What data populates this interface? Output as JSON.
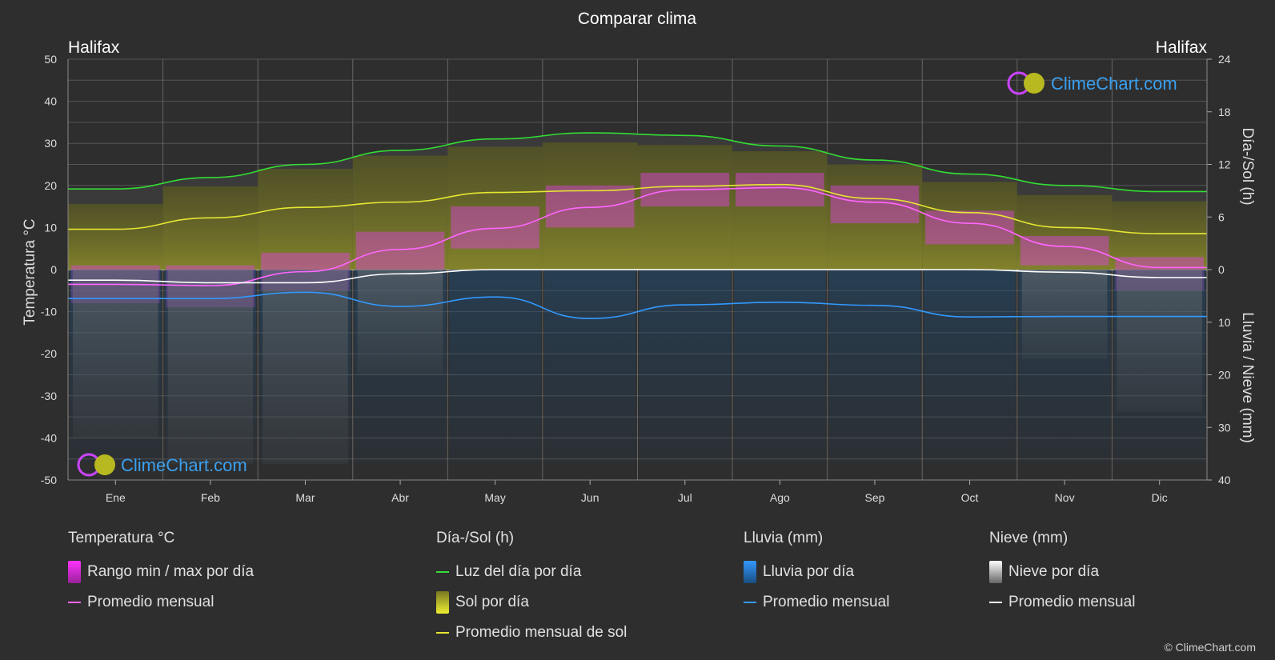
{
  "title": "Comparar clima",
  "location_left": "Halifax",
  "location_right": "Halifax",
  "watermark": "ClimeChart.com",
  "copyright": "© ClimeChart.com",
  "chart_data": {
    "type": "area",
    "categories": [
      "Ene",
      "Feb",
      "Mar",
      "Abr",
      "May",
      "Jun",
      "Jul",
      "Ago",
      "Sep",
      "Oct",
      "Nov",
      "Dic"
    ],
    "y_left": {
      "label": "Temperatura °C",
      "range": [
        -50,
        50
      ],
      "ticks": [
        50,
        40,
        30,
        20,
        10,
        0,
        -10,
        -20,
        -30,
        -40,
        -50
      ]
    },
    "y_right_top": {
      "label": "Día-/Sol (h)",
      "range": [
        0,
        24
      ],
      "ticks": [
        24,
        18,
        12,
        6,
        0
      ]
    },
    "y_right_bottom": {
      "label": "Lluvia / Nieve (mm)",
      "range": [
        0,
        40
      ],
      "ticks": [
        10,
        20,
        30,
        40
      ]
    },
    "grid": true,
    "series": [
      {
        "name": "Luz del día por día",
        "unit": "h",
        "color": "#33dd33",
        "values": [
          9.2,
          10.5,
          12.0,
          13.6,
          14.9,
          15.6,
          15.3,
          14.1,
          12.5,
          10.9,
          9.6,
          8.9
        ]
      },
      {
        "name": "Promedio mensual de sol",
        "unit": "h",
        "color": "#e6e633",
        "values": [
          4.6,
          5.9,
          7.1,
          7.7,
          8.8,
          9.0,
          9.5,
          9.7,
          8.1,
          6.5,
          4.8,
          4.1
        ]
      },
      {
        "name": "Promedio mensual",
        "group": "Temperatura °C",
        "unit": "°C",
        "color": "#ff66ff",
        "values": [
          -3.5,
          -3.8,
          -0.5,
          4.8,
          9.8,
          14.8,
          19.0,
          19.5,
          16.0,
          11.0,
          5.5,
          0.5
        ]
      },
      {
        "name": "Promedio mensual",
        "group": "Lluvia (mm)",
        "unit": "mm",
        "color": "#3399ff",
        "values": [
          5.5,
          5.5,
          4.3,
          7.0,
          5.2,
          9.3,
          6.7,
          6.2,
          6.8,
          9.0,
          8.9,
          8.9
        ]
      },
      {
        "name": "Promedio mensual",
        "group": "Nieve (mm)",
        "unit": "mm",
        "color": "#ffffff",
        "values": [
          2.0,
          2.5,
          2.5,
          0.8,
          0.0,
          0.0,
          0.0,
          0.0,
          0.0,
          0.0,
          0.5,
          1.5
        ]
      }
    ],
    "temp_range_daily": {
      "name": "Rango min / max por día",
      "min": [
        -8,
        -9,
        -5,
        0,
        5,
        10,
        15,
        15,
        11,
        6,
        1,
        -5
      ],
      "max": [
        1,
        1,
        4,
        9,
        15,
        20,
        23,
        23,
        20,
        14,
        8,
        3
      ]
    },
    "sunshine_daily_range_h": [
      7.5,
      9.5,
      11.5,
      13,
      14,
      14.5,
      14.2,
      13.5,
      12,
      10,
      8.5,
      7.8
    ]
  },
  "legend": {
    "temperature": {
      "title": "Temperatura °C",
      "items": [
        "Rango min / max por día",
        "Promedio mensual"
      ]
    },
    "sun": {
      "title": "Día-/Sol (h)",
      "items": [
        "Luz del día por día",
        "Sol por día",
        "Promedio mensual de sol"
      ]
    },
    "rain": {
      "title": "Lluvia (mm)",
      "items": [
        "Lluvia por día",
        "Promedio mensual"
      ]
    },
    "snow": {
      "title": "Nieve (mm)",
      "items": [
        "Nieve por día",
        "Promedio mensual"
      ]
    }
  },
  "colors": {
    "background": "#2e2e2e",
    "daylight": "#33dd33",
    "sun": "#e6e633",
    "temp": "#ff66ff",
    "rain": "#3399ff",
    "snow": "#ffffff"
  }
}
